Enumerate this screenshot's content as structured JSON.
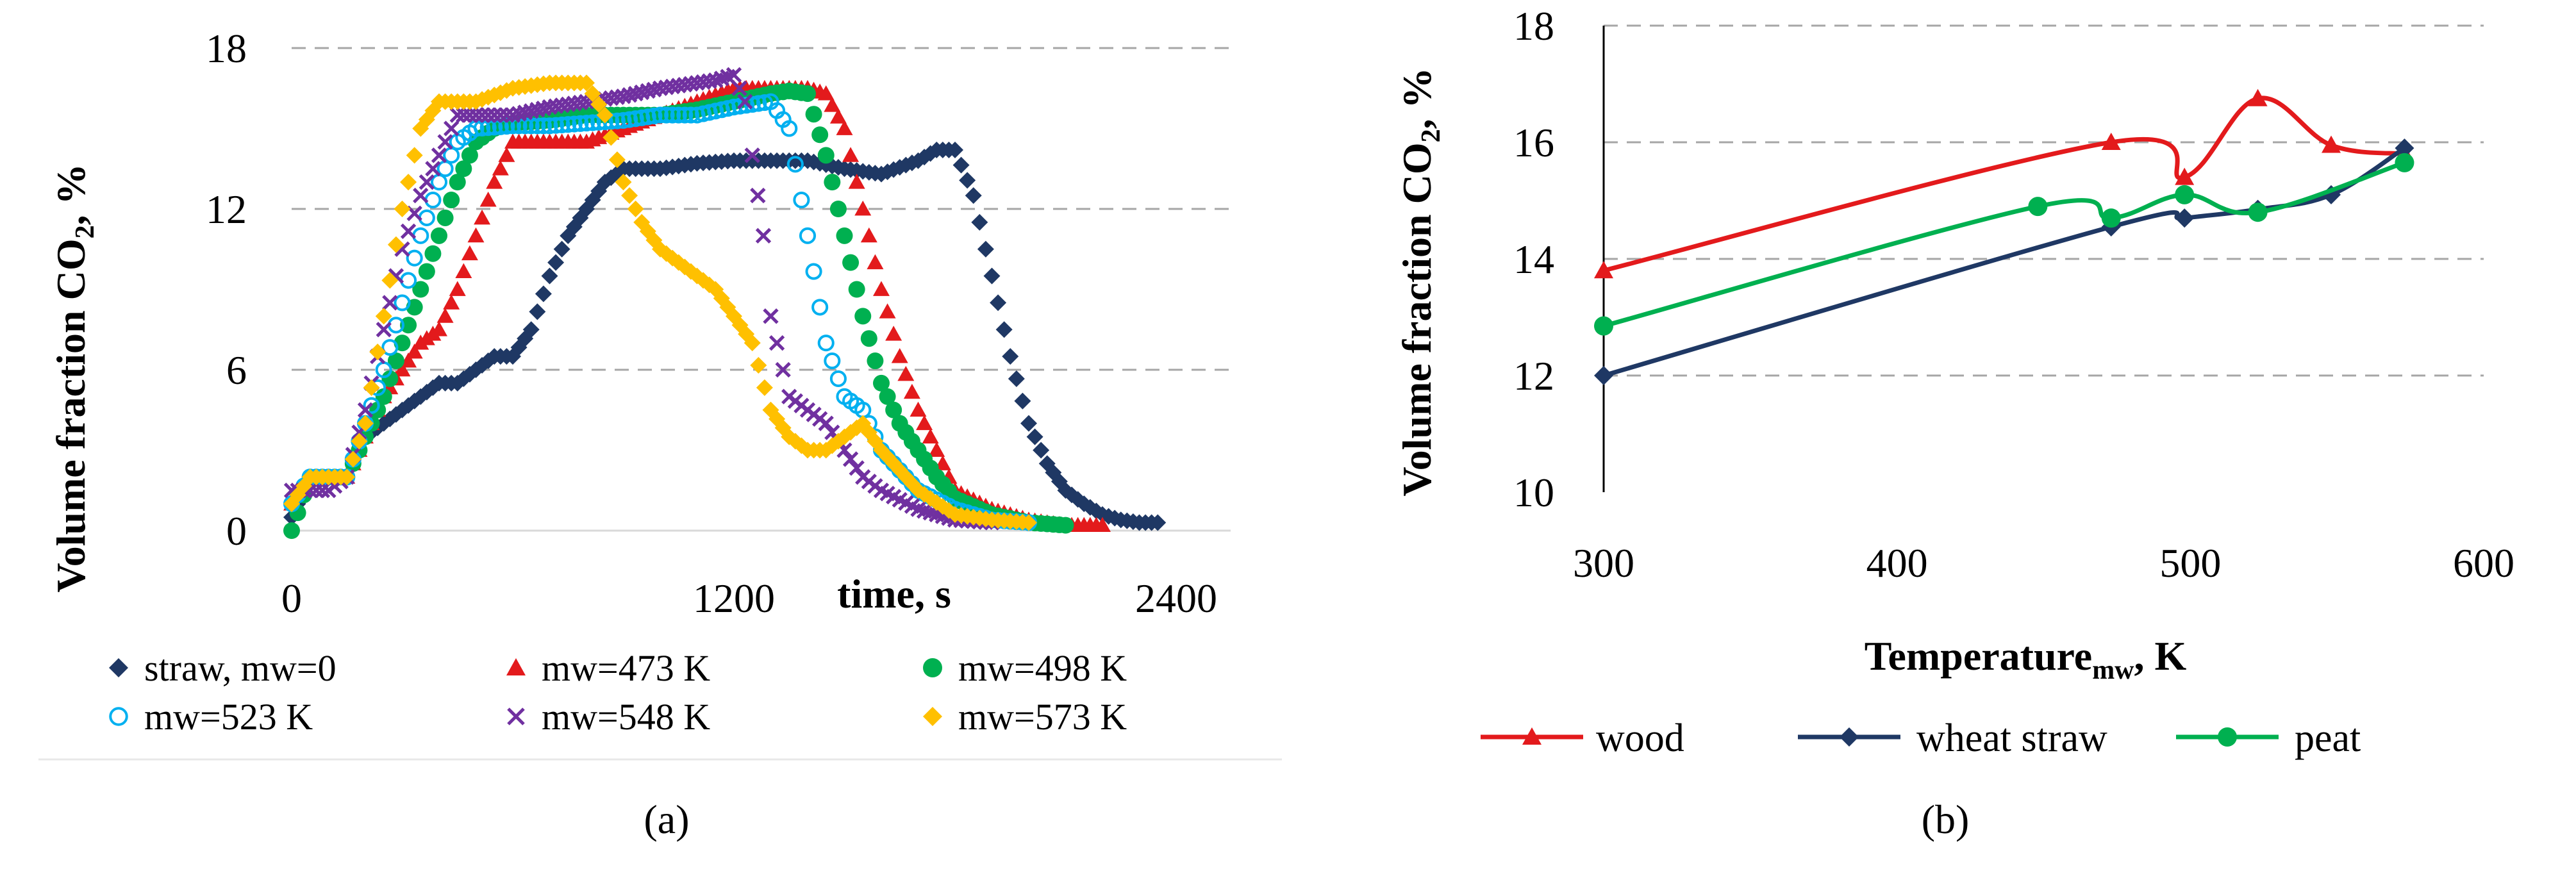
{
  "figure": {
    "label_a": "(a)",
    "label_b": "(b)"
  },
  "chart_data": [
    {
      "type": "scatter",
      "xlabel": "time, s",
      "ylabel": "Volume fraction CO",
      "ylabel_sub": "2",
      "ylabel_suffix": ", %",
      "xlim": [
        0,
        2400
      ],
      "ylim": [
        0,
        18
      ],
      "xticks": [
        "0",
        "1200",
        "2400"
      ],
      "yticks": [
        "0",
        "6",
        "12",
        "18"
      ],
      "grid": "horizontal dashed",
      "legend_position": "bottom",
      "series": [
        {
          "name": "straw, mw=0",
          "color": "#1f3864",
          "marker": "diamond",
          "x": [
            0,
            50,
            100,
            150,
            200,
            250,
            300,
            350,
            400,
            450,
            500,
            550,
            600,
            650,
            700,
            750,
            800,
            850,
            900,
            950,
            1000,
            1100,
            1200,
            1300,
            1400,
            1500,
            1600,
            1700,
            1750,
            1800,
            1850,
            1900,
            1950,
            2000,
            2050,
            2100,
            2150,
            2200,
            2250,
            2300,
            2350
          ],
          "y": [
            0.5,
            2,
            2,
            2,
            3.5,
            4,
            4.5,
            5,
            5.5,
            5.5,
            6,
            6.5,
            6.5,
            7.5,
            9.5,
            11,
            12,
            13,
            13.5,
            13.5,
            13.5,
            13.7,
            13.8,
            13.8,
            13.8,
            13.5,
            13.3,
            13.8,
            14.2,
            14.2,
            12.5,
            9.5,
            6.5,
            4,
            2.5,
            1.5,
            1,
            0.6,
            0.4,
            0.3,
            0.3
          ]
        },
        {
          "name": "mw=473 K",
          "color": "#e31a1c",
          "marker": "triangle",
          "x": [
            0,
            50,
            100,
            150,
            200,
            250,
            300,
            350,
            400,
            450,
            500,
            550,
            600,
            650,
            700,
            800,
            900,
            1000,
            1100,
            1200,
            1300,
            1400,
            1450,
            1500,
            1550,
            1600,
            1650,
            1700,
            1750,
            1800,
            1900,
            2000,
            2100,
            2200
          ],
          "y": [
            1,
            2,
            2,
            2,
            3.5,
            5,
            6,
            7,
            7.5,
            9,
            11,
            13,
            14.5,
            14.5,
            14.5,
            14.5,
            15,
            15.5,
            16,
            16.5,
            16.5,
            16.5,
            16.3,
            15,
            12,
            9,
            6.5,
            4.5,
            3,
            1.5,
            0.8,
            0.4,
            0.2,
            0.2
          ]
        },
        {
          "name": "mw=498 K",
          "color": "#00b050",
          "marker": "circle",
          "x": [
            0,
            50,
            100,
            150,
            200,
            250,
            300,
            350,
            400,
            450,
            500,
            550,
            600,
            700,
            800,
            900,
            1000,
            1100,
            1200,
            1300,
            1350,
            1400,
            1450,
            1500,
            1550,
            1600,
            1650,
            1700,
            1750,
            1800,
            1900,
            2000,
            2100
          ],
          "y": [
            0,
            2,
            2,
            2,
            3.5,
            5,
            7,
            9,
            11,
            13,
            14.5,
            15,
            15.2,
            15.3,
            15.5,
            15.5,
            15.5,
            15.7,
            16,
            16.3,
            16.4,
            16.3,
            14,
            11,
            8,
            5.5,
            4,
            3,
            2,
            1.2,
            0.6,
            0.3,
            0.2
          ]
        },
        {
          "name": "mw=523 K",
          "color": "#00b0f0",
          "marker": "circle-open",
          "x": [
            0,
            50,
            100,
            150,
            200,
            250,
            300,
            350,
            400,
            450,
            500,
            600,
            700,
            800,
            900,
            1000,
            1100,
            1200,
            1250,
            1300,
            1350,
            1400,
            1450,
            1500,
            1550,
            1600,
            1700,
            1800,
            1900,
            2000
          ],
          "y": [
            1,
            2,
            2,
            2,
            4,
            6,
            8.5,
            11,
            13,
            14.5,
            15,
            15.1,
            15.1,
            15.2,
            15.3,
            15.5,
            15.5,
            15.8,
            15.9,
            16,
            15,
            11,
            7,
            5,
            4.5,
            3,
            1.5,
            0.8,
            0.4,
            0.3
          ]
        },
        {
          "name": "mw=548 K",
          "color": "#7030a0",
          "marker": "cross",
          "x": [
            0,
            50,
            100,
            150,
            200,
            250,
            300,
            350,
            400,
            450,
            500,
            600,
            700,
            800,
            900,
            1000,
            1100,
            1150,
            1200,
            1230,
            1250,
            1280,
            1300,
            1350,
            1400,
            1450,
            1500,
            1550,
            1600,
            1700,
            1800,
            1900
          ],
          "y": [
            1.5,
            1.5,
            1.5,
            2,
            4.5,
            7.5,
            10.5,
            12.5,
            14,
            15.5,
            15.5,
            15.5,
            15.8,
            16,
            16.2,
            16.5,
            16.7,
            16.8,
            17,
            16,
            14,
            11,
            8,
            5,
            4.5,
            4,
            3,
            2,
            1.5,
            0.8,
            0.4,
            0.3
          ]
        },
        {
          "name": "mw=573 K",
          "color": "#ffc000",
          "marker": "diamond",
          "x": [
            0,
            50,
            100,
            150,
            200,
            250,
            300,
            350,
            400,
            500,
            600,
            700,
            800,
            850,
            900,
            950,
            1000,
            1050,
            1100,
            1150,
            1200,
            1250,
            1300,
            1350,
            1400,
            1450,
            1500,
            1550,
            1600,
            1700,
            1800,
            1900,
            2000
          ],
          "y": [
            1,
            2,
            2,
            2,
            4,
            8,
            12,
            15,
            16,
            16,
            16.5,
            16.7,
            16.7,
            15.5,
            13,
            11.5,
            10.5,
            10,
            9.5,
            9,
            8,
            7,
            4.5,
            3.5,
            3,
            3,
            3.5,
            4,
            3,
            1.5,
            0.6,
            0.4,
            0.3
          ]
        }
      ]
    },
    {
      "type": "line",
      "xlabel": "Temperature",
      "xlabel_sub": "mw",
      "xlabel_suffix": ", K",
      "ylabel": "Volume fraction CO",
      "ylabel_sub": "2",
      "ylabel_suffix": ", %",
      "xlim": [
        300,
        600
      ],
      "ylim": [
        10,
        18
      ],
      "xticks": [
        "300",
        "400",
        "500",
        "600"
      ],
      "yticks": [
        "10",
        "12",
        "14",
        "16",
        "18"
      ],
      "grid": "horizontal dashed",
      "legend_position": "bottom",
      "series": [
        {
          "name": "wood",
          "color": "#e31a1c",
          "marker": "triangle",
          "x": [
            300,
            473,
            498,
            523,
            548,
            573
          ],
          "y": [
            13.8,
            16.0,
            15.4,
            16.75,
            15.95,
            15.8
          ]
        },
        {
          "name": "wheat straw",
          "color": "#1f3864",
          "marker": "diamond",
          "x": [
            300,
            473,
            498,
            523,
            548,
            573
          ],
          "y": [
            12.0,
            14.55,
            14.7,
            14.85,
            15.1,
            15.9
          ]
        },
        {
          "name": "peat",
          "color": "#00b050",
          "marker": "circle",
          "x": [
            300,
            448,
            473,
            498,
            523,
            573
          ],
          "y": [
            12.85,
            14.9,
            14.7,
            15.1,
            14.8,
            15.65
          ]
        }
      ]
    }
  ]
}
